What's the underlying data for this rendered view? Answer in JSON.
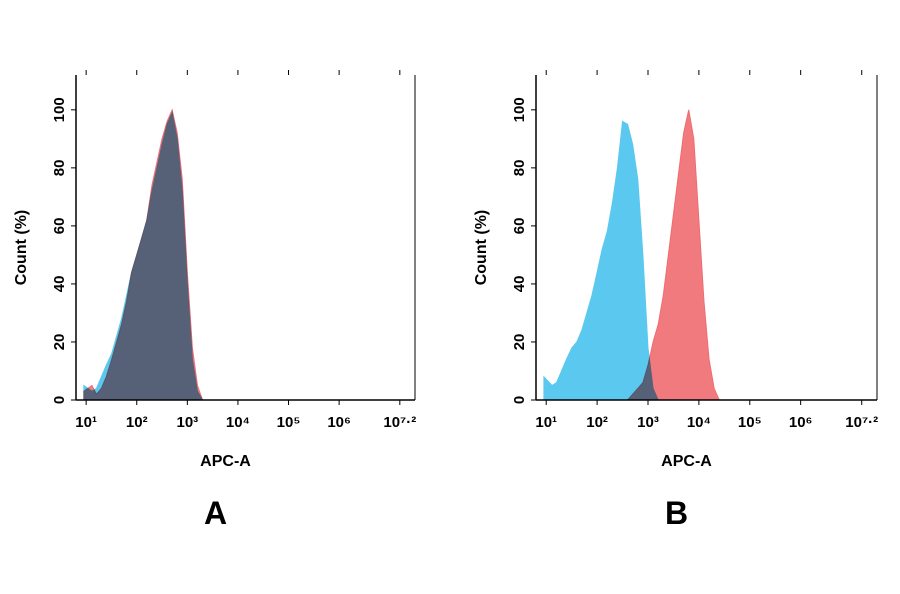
{
  "chart_data": [
    {
      "type": "area",
      "label": "A",
      "xlabel": "APC-A",
      "ylabel": "Count (%)",
      "xscale": "log",
      "xlim": [
        6.3,
        31622777
      ],
      "ylim": [
        0,
        112
      ],
      "xticks": [
        {
          "value": 10,
          "label": "10¹"
        },
        {
          "value": 100,
          "label": "10²"
        },
        {
          "value": 1000,
          "label": "10³"
        },
        {
          "value": 10000,
          "label": "10⁴"
        },
        {
          "value": 100000,
          "label": "10⁵"
        },
        {
          "value": 1000000,
          "label": "10⁶"
        },
        {
          "value": 15848932,
          "label": "10⁷·²"
        }
      ],
      "yticks": [
        0,
        20,
        40,
        60,
        80,
        100
      ],
      "x": [
        9,
        13,
        16,
        20,
        25,
        32,
        40,
        50,
        63,
        79,
        100,
        126,
        158,
        200,
        251,
        316,
        398,
        501,
        631,
        794,
        1000,
        1259,
        1585,
        1995
      ],
      "series": [
        {
          "color": "#5bc8ef",
          "values": [
            5,
            3,
            4,
            8,
            12,
            16,
            22,
            28,
            36,
            44,
            50,
            56,
            62,
            72,
            80,
            88,
            95,
            99,
            90,
            72,
            40,
            14,
            3,
            0
          ]
        },
        {
          "color": "#f06c70",
          "values": [
            3,
            5,
            2,
            4,
            8,
            14,
            20,
            26,
            34,
            44,
            50,
            56,
            62,
            74,
            82,
            90,
            96,
            100,
            92,
            76,
            44,
            18,
            5,
            0
          ]
        }
      ]
    },
    {
      "type": "area",
      "label": "B",
      "xlabel": "APC-A",
      "ylabel": "Count (%)",
      "xscale": "log",
      "xlim": [
        6.3,
        31622777
      ],
      "ylim": [
        0,
        112
      ],
      "xticks": [
        {
          "value": 10,
          "label": "10¹"
        },
        {
          "value": 100,
          "label": "10²"
        },
        {
          "value": 1000,
          "label": "10³"
        },
        {
          "value": 10000,
          "label": "10⁴"
        },
        {
          "value": 100000,
          "label": "10⁵"
        },
        {
          "value": 1000000,
          "label": "10⁶"
        },
        {
          "value": 15848932,
          "label": "10⁷·²"
        }
      ],
      "yticks": [
        0,
        20,
        40,
        60,
        80,
        100
      ],
      "x": [
        9,
        13,
        16,
        20,
        25,
        32,
        40,
        50,
        63,
        79,
        100,
        126,
        158,
        200,
        251,
        316,
        398,
        501,
        631,
        794,
        1000,
        1259,
        1585,
        1995,
        2512,
        3162,
        3981,
        5012,
        6310,
        7943,
        10000,
        12589,
        15849,
        19953,
        25119
      ],
      "series": [
        {
          "color": "#5bc8ef",
          "values": [
            8,
            5,
            6,
            10,
            14,
            18,
            20,
            24,
            30,
            36,
            44,
            52,
            58,
            68,
            80,
            96,
            95,
            88,
            76,
            50,
            18,
            4,
            0,
            null,
            null,
            null,
            null,
            null,
            null,
            null,
            null,
            null,
            null,
            null,
            null
          ]
        },
        {
          "color": "#f06c70",
          "values": [
            null,
            null,
            null,
            null,
            null,
            null,
            null,
            null,
            null,
            null,
            null,
            null,
            null,
            null,
            null,
            null,
            0,
            2,
            4,
            6,
            12,
            20,
            26,
            36,
            50,
            64,
            78,
            92,
            100,
            90,
            62,
            34,
            14,
            4,
            0
          ]
        }
      ]
    }
  ]
}
